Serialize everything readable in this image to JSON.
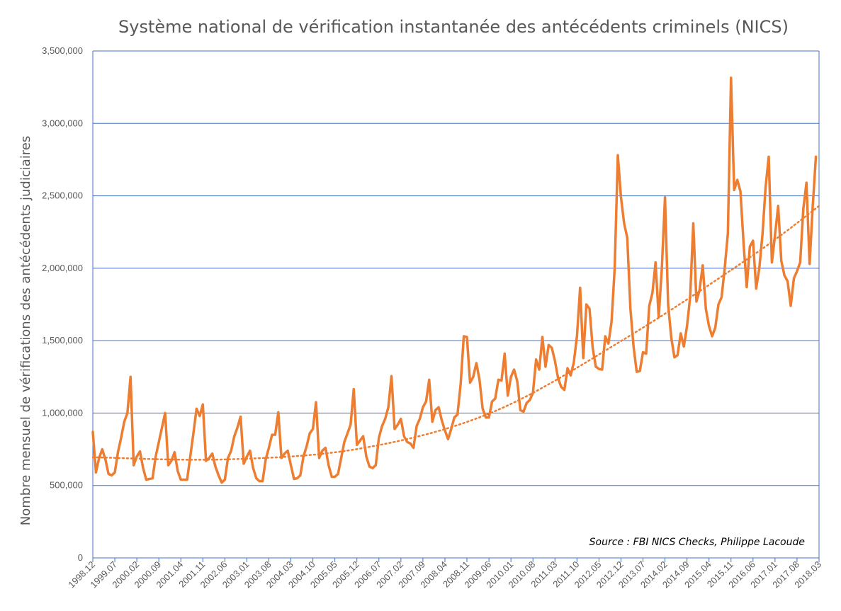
{
  "chart_data": {
    "type": "line",
    "title": "Système national de vérification instantanée des antécédents criminels (NICS)",
    "ylabel": "Nombre mensuel de vérifications des antécédents judiciaires",
    "xlabel": "",
    "ylim": [
      0,
      3500000
    ],
    "y_ticks": [
      0,
      500000,
      1000000,
      1500000,
      2000000,
      2500000,
      3000000,
      3500000
    ],
    "y_tick_labels": [
      "0",
      "500,000",
      "1,000,000",
      "1,500,000",
      "2,000,000",
      "2,500,000",
      "3,000,000",
      "3,500,000"
    ],
    "x_tick_labels": [
      "1998.12",
      "1999.07",
      "2000.02",
      "2000.09",
      "2001.04",
      "2001.11",
      "2002.06",
      "2003.01",
      "2003.08",
      "2004.03",
      "2004.10",
      "2005.05",
      "2005.12",
      "2006.07",
      "2007.02",
      "2007.09",
      "2008.04",
      "2008.11",
      "2009.06",
      "2010.01",
      "2010.08",
      "2011.03",
      "2011.10",
      "2012.05",
      "2012.12",
      "2013.07",
      "2014.02",
      "2014.09",
      "2015.04",
      "2015.11",
      "2016.06",
      "2017.01",
      "2017.08",
      "2018.03"
    ],
    "x_range": [
      "1998.12",
      "2018.03"
    ],
    "grid": "horizontal",
    "colors": {
      "series": "#ED7D31",
      "grid": "#4472C4",
      "axis": "#4472C4"
    },
    "series": [
      {
        "start": "1998.12",
        "frequency": "monthly",
        "style": "solid",
        "values": [
          870000,
          590000,
          690000,
          750000,
          680000,
          580000,
          570000,
          590000,
          730000,
          830000,
          940000,
          1000000,
          1250000,
          640000,
          700000,
          735000,
          620000,
          540000,
          545000,
          550000,
          700000,
          800000,
          900000,
          1000000,
          640000,
          670000,
          730000,
          600000,
          540000,
          540000,
          540000,
          700000,
          860000,
          1030000,
          980000,
          1060000,
          670000,
          690000,
          720000,
          630000,
          570000,
          520000,
          540000,
          690000,
          740000,
          840000,
          900000,
          975000,
          650000,
          700000,
          740000,
          620000,
          550000,
          530000,
          530000,
          680000,
          760000,
          850000,
          850000,
          1005000,
          690000,
          720000,
          740000,
          640000,
          545000,
          550000,
          570000,
          700000,
          770000,
          860000,
          890000,
          1075000,
          690000,
          740000,
          760000,
          640000,
          560000,
          560000,
          580000,
          690000,
          800000,
          860000,
          920000,
          1165000,
          780000,
          810000,
          840000,
          700000,
          630000,
          620000,
          640000,
          830000,
          910000,
          960000,
          1040000,
          1255000,
          890000,
          920000,
          960000,
          840000,
          800000,
          790000,
          760000,
          910000,
          960000,
          1040000,
          1080000,
          1230000,
          940000,
          1020000,
          1040000,
          950000,
          880000,
          820000,
          890000,
          970000,
          990000,
          1200000,
          1530000,
          1525000,
          1210000,
          1250000,
          1345000,
          1230000,
          1030000,
          970000,
          970000,
          1080000,
          1100000,
          1230000,
          1225000,
          1410000,
          1120000,
          1250000,
          1300000,
          1220000,
          1020000,
          1010000,
          1070000,
          1090000,
          1140000,
          1370000,
          1300000,
          1525000,
          1320000,
          1470000,
          1450000,
          1360000,
          1240000,
          1180000,
          1160000,
          1310000,
          1260000,
          1350000,
          1530000,
          1865000,
          1380000,
          1750000,
          1720000,
          1450000,
          1320000,
          1305000,
          1300000,
          1530000,
          1480000,
          1630000,
          2000000,
          2780000,
          2490000,
          2310000,
          2210000,
          1720000,
          1460000,
          1285000,
          1290000,
          1420000,
          1410000,
          1740000,
          1830000,
          2040000,
          1660000,
          2000000,
          2490000,
          1750000,
          1520000,
          1385000,
          1400000,
          1550000,
          1460000,
          1600000,
          1800000,
          2310000,
          1770000,
          1850000,
          2020000,
          1720000,
          1600000,
          1530000,
          1590000,
          1750000,
          1800000,
          2000000,
          2240000,
          3315000,
          2540000,
          2610000,
          2530000,
          2170000,
          1870000,
          2150000,
          2190000,
          1860000,
          2000000,
          2230000,
          2560000,
          2770000,
          2040000,
          2230000,
          2430000,
          2050000,
          1950000,
          1910000,
          1740000,
          1930000,
          1980000,
          2040000,
          2410000,
          2590000,
          2030000,
          2430000,
          2770000
        ]
      },
      {
        "style": "dotted",
        "kind": "trendline",
        "values_at": [
          "1998.12",
          "2002.06",
          "2006.01",
          "2009.07",
          "2013.01",
          "2016.06",
          "2018.03"
        ],
        "values": [
          695000,
          680000,
          755000,
          1005000,
          1510000,
          2090000,
          2430000
        ]
      }
    ],
    "annotations": [
      "Source : FBI NICS Checks, Philippe Lacoude"
    ]
  }
}
